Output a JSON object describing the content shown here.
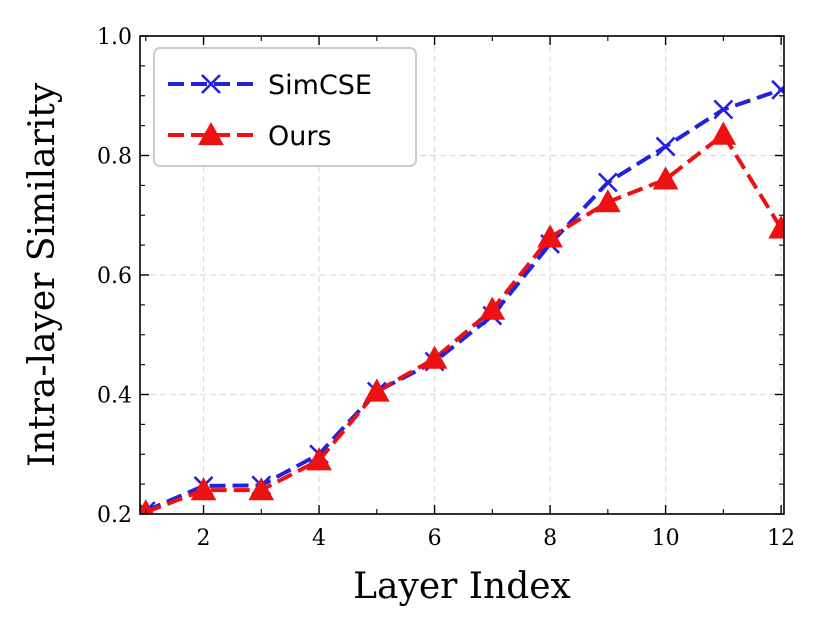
{
  "chart_data": {
    "type": "line",
    "xlabel": "Layer Index",
    "ylabel": "Intra-layer Similarity",
    "xlim": [
      0.9,
      12.05
    ],
    "ylim": [
      0.2,
      1.0
    ],
    "xticks": [
      2,
      4,
      6,
      8,
      10,
      12
    ],
    "yticks": [
      0.2,
      0.4,
      0.6,
      0.8,
      1.0
    ],
    "ytick_labels": [
      "0.2",
      "0.4",
      "0.6",
      "0.8",
      "1.0"
    ],
    "grid": true,
    "legend_position": "top-left",
    "x": [
      1,
      2,
      3,
      4,
      5,
      6,
      7,
      8,
      9,
      10,
      11,
      12
    ],
    "series": [
      {
        "name": "SimCSE",
        "color": "#2222dd",
        "marker": "x",
        "linestyle": "dashed",
        "values": [
          0.205,
          0.247,
          0.248,
          0.3,
          0.405,
          0.455,
          0.532,
          0.652,
          0.755,
          0.815,
          0.877,
          0.91
        ]
      },
      {
        "name": "Ours",
        "color": "#ee1111",
        "marker": "triangle",
        "linestyle": "dashed",
        "values": [
          0.203,
          0.24,
          0.24,
          0.29,
          0.405,
          0.46,
          0.542,
          0.663,
          0.722,
          0.76,
          0.835,
          0.678
        ]
      }
    ]
  }
}
